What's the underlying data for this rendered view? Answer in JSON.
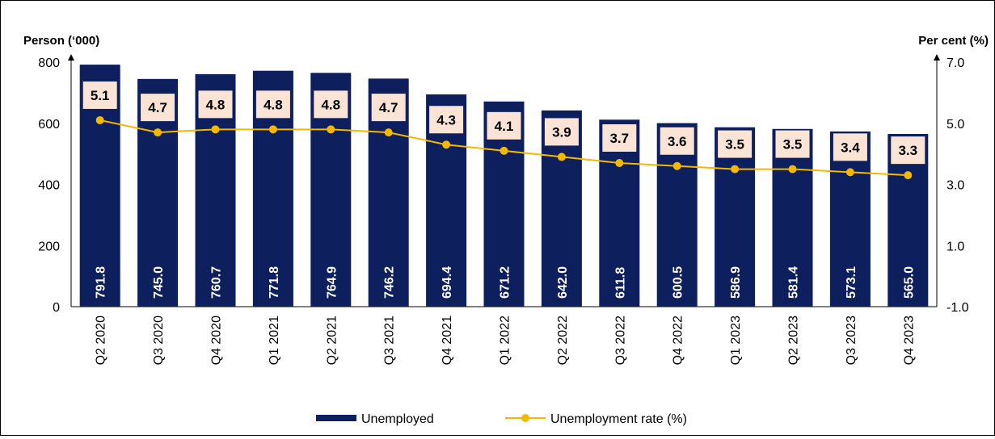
{
  "chart_data": {
    "type": "bar+line",
    "categories": [
      "Q2 2020",
      "Q3 2020",
      "Q4 2020",
      "Q1 2021",
      "Q2 2021",
      "Q3 2021",
      "Q4 2021",
      "Q1 2022",
      "Q2 2022",
      "Q3 2022",
      "Q4 2022",
      "Q1 2023",
      "Q2 2023",
      "Q3 2023",
      "Q4 2023"
    ],
    "series": [
      {
        "name": "Unemployed",
        "type": "bar",
        "axis": "left",
        "color": "#0d1f5c",
        "values": [
          791.8,
          745.0,
          760.7,
          771.8,
          764.9,
          746.2,
          694.4,
          671.2,
          642.0,
          611.8,
          600.5,
          586.9,
          581.4,
          573.1,
          565.0
        ],
        "labels": [
          "791.8",
          "745.0",
          "760.7",
          "771.8",
          "764.9",
          "746.2",
          "694.4",
          "671.2",
          "642.0",
          "611.8",
          "600.5",
          "586.9",
          "581.4",
          "573.1",
          "565.0"
        ]
      },
      {
        "name": "Unemployment rate (%)",
        "type": "line",
        "axis": "right",
        "color": "#f5b800",
        "label_bg": "#fbe4d5",
        "values": [
          5.1,
          4.7,
          4.8,
          4.8,
          4.8,
          4.7,
          4.3,
          4.1,
          3.9,
          3.7,
          3.6,
          3.5,
          3.5,
          3.4,
          3.3
        ],
        "labels": [
          "5.1",
          "4.7",
          "4.8",
          "4.8",
          "4.8",
          "4.7",
          "4.3",
          "4.1",
          "3.9",
          "3.7",
          "3.6",
          "3.5",
          "3.5",
          "3.4",
          "3.3"
        ]
      }
    ],
    "y_left": {
      "label": "Person (‘000)",
      "ylim": [
        0,
        800
      ],
      "ticks": [
        0,
        200,
        400,
        600,
        800
      ],
      "tick_labels": [
        "0",
        "200",
        "400",
        "600",
        "800"
      ]
    },
    "y_right": {
      "label": "Per cent (%)",
      "ylim": [
        -1.0,
        7.0
      ],
      "ticks": [
        -1.0,
        1.0,
        3.0,
        5.0,
        7.0
      ],
      "tick_labels": [
        "-1.0",
        "1.0",
        "3.0",
        "5.0",
        "7.0"
      ]
    },
    "legend": {
      "position": "bottom",
      "entries": [
        "Unemployed",
        "Unemployment rate (%)"
      ]
    },
    "grid": false
  }
}
